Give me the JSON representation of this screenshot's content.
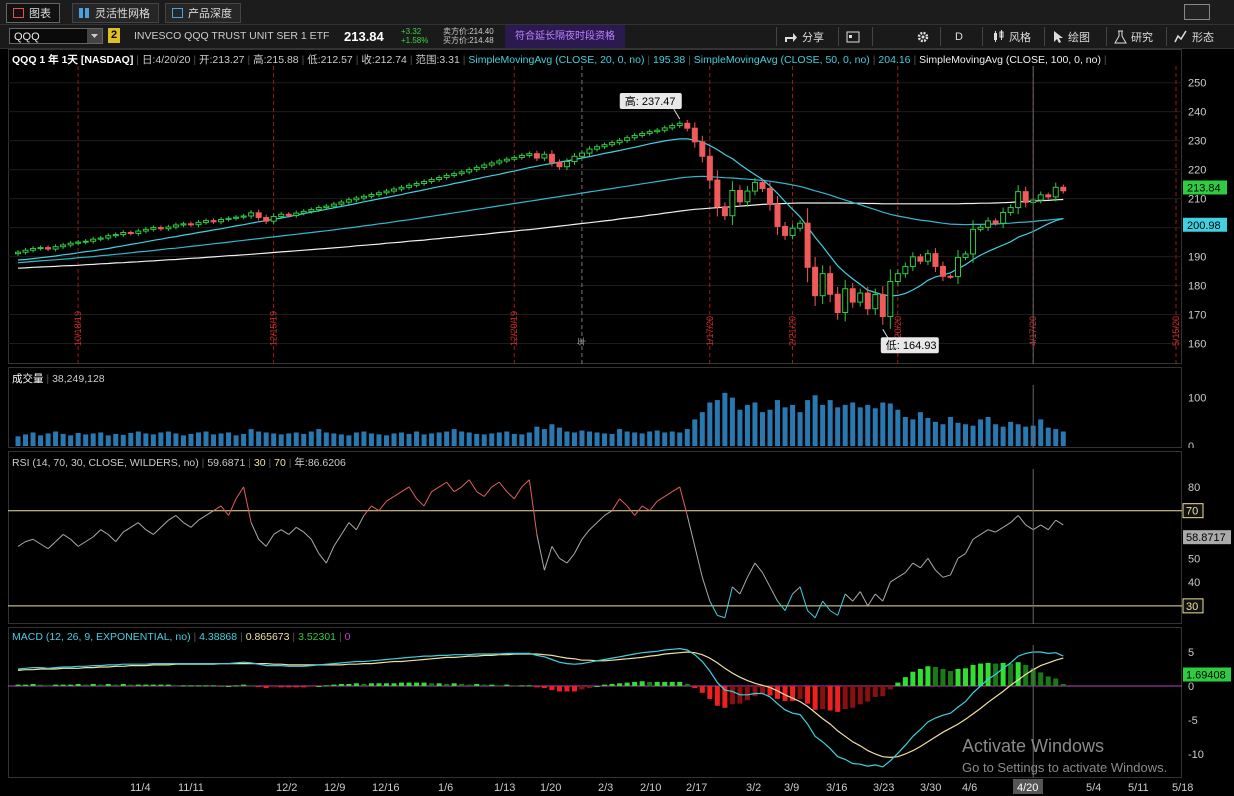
{
  "tabs": [
    {
      "label": "图表",
      "icon": "chart-icon",
      "active": true
    },
    {
      "label": "灵活性网格",
      "icon": "grid-icon",
      "active": false
    },
    {
      "label": "产品深度",
      "icon": "depth-icon",
      "active": false
    }
  ],
  "toolbar": {
    "symbol": "QQQ",
    "link_number": "2",
    "security_name": "INVESCO QQQ TRUST UNIT SER 1 ETF",
    "last_price": "213.84",
    "change": "+3.32",
    "change_pct": "+1.58%",
    "bid": "卖方价:214.40",
    "ask": "买方价:214.48",
    "extended_hours": "符合延长隔夜时段资格",
    "buttons": [
      {
        "label": "分享",
        "icon": "share-icon"
      },
      {
        "label": "",
        "icon": "calendar-icon"
      },
      {
        "label": "",
        "icon": "settings-gear-icon"
      },
      {
        "label": "D",
        "icon": "timeframe-icon"
      },
      {
        "label": "风格",
        "icon": "style-icon"
      },
      {
        "label": "绘图",
        "icon": "draw-cursor-icon"
      },
      {
        "label": "研究",
        "icon": "flask-icon"
      },
      {
        "label": "形态",
        "icon": "pattern-icon"
      }
    ]
  },
  "header": {
    "title": "QQQ 1 年 1天 [NASDAQ]",
    "date": "日:4/20/20",
    "open": "开:213.27",
    "high": "高:215.88",
    "low": "低:212.57",
    "close": "收:212.74",
    "range": "范围:3.31",
    "sma20_label": "SimpleMovingAvg (CLOSE, 20, 0, no)",
    "sma20_val": "195.38",
    "sma50_label": "SimpleMovingAvg (CLOSE, 50, 0, no)",
    "sma50_val": "204.16",
    "sma100_label": "SimpleMovingAvg (CLOSE, 100, 0, no)"
  },
  "price_panel": {
    "high_marker": "高: 237.47",
    "low_marker": "低: 164.93",
    "last_tag": "213.84",
    "sma_tag": "200.98",
    "y_ticks": [
      "250",
      "240",
      "230",
      "220",
      "210",
      "200",
      "190",
      "180",
      "170",
      "160"
    ],
    "event_labels": [
      "10/18/19",
      "12/15/19",
      "12/20/19",
      "年",
      "1/17/20",
      "2/21/20",
      "3/20/20",
      "4/17/20",
      "5/15/20"
    ]
  },
  "volume_panel": {
    "label": "成交量",
    "value": "38,249,128",
    "y_ticks": [
      "100",
      "0"
    ]
  },
  "rsi_panel": {
    "label": "RSI (14, 70, 30, CLOSE, WILDERS, no)",
    "value": "59.6871",
    "ob": "30",
    "os": "70",
    "extra": "年:86.6206",
    "y_ticks": [
      "80",
      "70",
      "60",
      "50",
      "40",
      "30"
    ],
    "last_tag": "58.8717"
  },
  "macd_panel": {
    "label": "MACD (12, 26, 9, EXPONENTIAL, no)",
    "value": "4.38868",
    "avg": "0.865673",
    "diff": "3.52301",
    "zero": "0",
    "y_ticks": [
      "5",
      "0",
      "-5",
      "-10"
    ],
    "last_tag": "1.69408"
  },
  "x_axis": {
    "labels": [
      "11/4",
      "11/11",
      "12/2",
      "12/9",
      "12/16",
      "1/6",
      "1/13",
      "1/20",
      "2/3",
      "2/10",
      "2/17",
      "3/2",
      "3/9",
      "3/16",
      "3/23",
      "3/30",
      "4/6",
      "4/20",
      "5/4",
      "5/11",
      "5/18"
    ]
  },
  "watermark": {
    "line1": "Activate Windows",
    "line2": "Go to Settings to activate Windows."
  },
  "colors": {
    "up": "#2ecc40",
    "down": "#f05a5a",
    "sma20": "#40d0e0",
    "sma50": "#30b8d0",
    "sma100": "#f0f0f0",
    "volume": "#2a78b0",
    "rsi_ob": "#e06060",
    "macd": "#40d0e0",
    "signal": "#f0e0a0",
    "zero": "#c040c0"
  },
  "chart_data": {
    "type": "candlestick",
    "symbol": "QQQ",
    "period": "1 年 1天",
    "ylim": [
      155,
      253
    ],
    "highlights": {
      "high": 237.47,
      "low": 164.93,
      "last": 213.84,
      "sma": 200.98
    },
    "closes": [
      191.5,
      192.2,
      192.8,
      193.1,
      192.6,
      193.4,
      194.0,
      194.6,
      195.0,
      195.3,
      196.0,
      196.4,
      197.2,
      197.6,
      198.3,
      198.0,
      198.8,
      199.4,
      200.0,
      199.6,
      200.2,
      200.9,
      201.3,
      201.0,
      201.8,
      202.4,
      202.0,
      202.8,
      203.2,
      203.6,
      204.0,
      205.1,
      203.5,
      202.2,
      203.8,
      204.6,
      204.2,
      205.0,
      205.6,
      206.2,
      206.9,
      207.4,
      208.1,
      208.8,
      209.6,
      210.2,
      210.8,
      211.4,
      212.0,
      212.6,
      213.3,
      213.9,
      214.6,
      215.2,
      215.9,
      216.6,
      217.3,
      218.0,
      218.6,
      219.2,
      220.0,
      220.8,
      221.6,
      222.3,
      223.0,
      223.6,
      224.2,
      224.9,
      225.5,
      224.0,
      225.3,
      222.5,
      221.0,
      222.8,
      224.6,
      225.7,
      227.1,
      227.9,
      228.6,
      229.3,
      230.1,
      231.0,
      231.8,
      232.5,
      233.1,
      233.6,
      234.4,
      235.2,
      236.0,
      234.3,
      229.6,
      224.6,
      216.4,
      207.2,
      204.1,
      212.8,
      208.9,
      212.6,
      215.6,
      213.5,
      208.0,
      200.4,
      197.3,
      199.8,
      201.5,
      186.3,
      176.5,
      184.1,
      177.0,
      170.7,
      178.9,
      174.3,
      177.4,
      172.0,
      176.9,
      169.3,
      181.4,
      184.1,
      186.6,
      189.9,
      188.4,
      191.0,
      186.6,
      183.2,
      183.1,
      189.7,
      190.9,
      199.4,
      200.1,
      202.3,
      201.5,
      205.2,
      206.9,
      212.4,
      208.7,
      209.5,
      211.3,
      210.6,
      213.9,
      212.7
    ],
    "sma20": [
      188.8,
      189.0,
      189.3,
      189.6,
      189.9,
      190.2,
      190.6,
      190.9,
      191.3,
      191.7,
      192.0,
      192.4,
      192.8,
      193.3,
      193.7,
      194.2,
      194.6,
      195.1,
      195.6,
      196.0,
      196.5,
      196.9,
      197.4,
      197.8,
      198.3,
      198.7,
      199.2,
      199.6,
      200.1,
      200.6,
      201.0,
      201.5,
      202.0,
      202.4,
      202.9,
      203.3,
      203.8,
      204.3,
      204.8,
      205.3,
      205.8,
      206.3,
      206.8,
      207.3,
      207.8,
      208.3,
      208.9,
      209.4,
      209.9,
      210.4,
      210.9,
      211.4,
      212.0,
      212.5,
      213.0,
      213.6,
      214.1,
      214.6,
      215.2,
      215.7,
      216.3,
      216.8,
      217.4,
      217.9,
      218.4,
      219.0,
      219.5,
      220.1,
      220.7,
      221.2,
      221.7,
      222.1,
      222.6,
      223.0,
      223.5,
      224.0,
      224.5,
      225.0,
      225.6,
      226.1,
      226.6,
      227.2,
      227.7,
      228.3,
      228.9,
      229.4,
      229.9,
      230.3,
      230.6,
      230.6,
      230.2,
      229.5,
      228.3,
      226.9,
      225.2,
      223.8,
      221.8,
      220.0,
      218.3,
      216.6,
      214.4,
      211.8,
      209.0,
      206.3,
      203.7,
      200.2,
      196.7,
      193.5,
      190.1,
      186.8,
      184.4,
      182.3,
      180.4,
      178.4,
      177.6,
      176.8,
      176.4,
      176.6,
      177.3,
      178.5,
      180.0,
      181.8,
      183.0,
      183.6,
      184.4,
      185.8,
      187.2,
      189.0,
      190.5,
      191.8,
      192.9,
      194.0,
      195.1,
      196.7,
      197.6,
      198.7,
      200.0,
      201.3,
      202.4,
      203.1
    ],
    "sma50": [
      187.9,
      188.1,
      188.3,
      188.5,
      188.7,
      188.9,
      189.1,
      189.3,
      189.6,
      189.8,
      190.0,
      190.3,
      190.5,
      190.8,
      191.0,
      191.3,
      191.6,
      191.8,
      192.1,
      192.4,
      192.7,
      192.9,
      193.2,
      193.5,
      193.8,
      194.1,
      194.4,
      194.7,
      195.0,
      195.3,
      195.6,
      195.9,
      196.2,
      196.5,
      196.8,
      197.1,
      197.4,
      197.7,
      198.0,
      198.3,
      198.6,
      198.9,
      199.2,
      199.6,
      199.9,
      200.2,
      200.6,
      200.9,
      201.3,
      201.6,
      202.0,
      202.4,
      202.7,
      203.1,
      203.5,
      203.9,
      204.3,
      204.7,
      205.1,
      205.5,
      205.9,
      206.3,
      206.7,
      207.1,
      207.5,
      207.9,
      208.3,
      208.7,
      209.1,
      209.5,
      209.9,
      210.3,
      210.7,
      211.1,
      211.5,
      211.9,
      212.3,
      212.7,
      213.1,
      213.5,
      213.9,
      214.3,
      214.7,
      215.1,
      215.5,
      215.9,
      216.3,
      216.7,
      217.1,
      217.4,
      217.6,
      217.7,
      217.6,
      217.4,
      217.2,
      217.1,
      216.9,
      216.7,
      216.5,
      216.3,
      216.0,
      215.6,
      215.2,
      214.7,
      214.2,
      213.5,
      212.7,
      212.0,
      211.2,
      210.3,
      209.5,
      208.7,
      207.9,
      207.0,
      206.2,
      205.3,
      204.6,
      204.0,
      203.5,
      203.0,
      202.6,
      202.3,
      201.9,
      201.5,
      201.2,
      201.1,
      201.0,
      201.1,
      201.1,
      201.2,
      201.2,
      201.4,
      201.5,
      201.8,
      201.9,
      202.1,
      202.4,
      202.6,
      202.9,
      203.1
    ],
    "sma100": [
      186.0,
      186.1,
      186.3,
      186.4,
      186.5,
      186.6,
      186.8,
      186.9,
      187.0,
      187.2,
      187.3,
      187.5,
      187.6,
      187.8,
      187.9,
      188.1,
      188.2,
      188.4,
      188.5,
      188.7,
      188.9,
      189.0,
      189.2,
      189.4,
      189.5,
      189.7,
      189.9,
      190.1,
      190.3,
      190.4,
      190.6,
      190.8,
      191.0,
      191.2,
      191.4,
      191.6,
      191.8,
      192.0,
      192.2,
      192.4,
      192.6,
      192.8,
      193.0,
      193.2,
      193.4,
      193.7,
      193.9,
      194.1,
      194.3,
      194.6,
      194.8,
      195.0,
      195.3,
      195.5,
      195.7,
      196.0,
      196.2,
      196.5,
      196.7,
      197.0,
      197.2,
      197.5,
      197.7,
      198.0,
      198.3,
      198.5,
      198.8,
      199.1,
      199.3,
      199.6,
      199.9,
      200.2,
      200.5,
      200.8,
      201.1,
      201.4,
      201.7,
      202.0,
      202.3,
      202.6,
      203.0,
      203.3,
      203.6,
      203.9,
      204.3,
      204.6,
      205.0,
      205.3,
      205.7,
      206.0,
      206.3,
      206.5,
      206.7,
      206.9,
      207.0,
      207.2,
      207.4,
      207.6,
      207.8,
      208.0,
      208.1,
      208.2,
      208.3,
      208.4,
      208.5,
      208.5,
      208.5,
      208.5,
      208.5,
      208.5,
      208.5,
      208.4,
      208.4,
      208.3,
      208.3,
      208.2,
      208.2,
      208.2,
      208.2,
      208.2,
      208.2,
      208.2,
      208.2,
      208.2,
      208.2,
      208.2,
      208.3,
      208.3,
      208.4,
      208.4,
      208.5,
      208.6,
      208.7,
      208.9,
      209.0,
      209.1,
      209.3,
      209.4,
      209.6,
      209.7
    ],
    "volume": [
      20,
      24,
      28,
      22,
      26,
      30,
      25,
      22,
      27,
      24,
      26,
      28,
      22,
      25,
      23,
      27,
      30,
      26,
      24,
      28,
      30,
      26,
      22,
      25,
      28,
      30,
      24,
      26,
      28,
      22,
      25,
      35,
      30,
      28,
      26,
      24,
      26,
      28,
      25,
      30,
      35,
      28,
      26,
      24,
      22,
      28,
      30,
      26,
      24,
      22,
      26,
      28,
      25,
      30,
      24,
      26,
      28,
      30,
      35,
      30,
      28,
      25,
      24,
      26,
      28,
      30,
      25,
      24,
      28,
      40,
      35,
      45,
      38,
      30,
      28,
      32,
      30,
      28,
      26,
      25,
      35,
      30,
      28,
      26,
      30,
      32,
      28,
      30,
      28,
      35,
      55,
      70,
      90,
      95,
      110,
      100,
      75,
      85,
      90,
      70,
      75,
      95,
      80,
      85,
      70,
      95,
      105,
      85,
      95,
      80,
      85,
      90,
      80,
      85,
      78,
      90,
      88,
      75,
      60,
      55,
      70,
      58,
      50,
      45,
      60,
      48,
      45,
      42,
      55,
      60,
      45,
      40,
      50,
      45,
      40,
      42,
      55,
      38,
      35,
      30
    ],
    "rsi": [
      55,
      57,
      58,
      56,
      54,
      57,
      60,
      58,
      55,
      57,
      59,
      62,
      60,
      57,
      61,
      63,
      65,
      62,
      60,
      63,
      66,
      68,
      65,
      63,
      66,
      68,
      70,
      72,
      68,
      75,
      80,
      65,
      58,
      55,
      60,
      62,
      60,
      63,
      61,
      58,
      52,
      48,
      55,
      60,
      65,
      62,
      68,
      72,
      70,
      74,
      76,
      78,
      80,
      75,
      72,
      78,
      80,
      82,
      78,
      80,
      83,
      78,
      76,
      80,
      82,
      78,
      75,
      80,
      83,
      60,
      45,
      55,
      50,
      48,
      52,
      58,
      62,
      65,
      68,
      70,
      75,
      72,
      68,
      72,
      70,
      74,
      76,
      78,
      80,
      68,
      55,
      42,
      32,
      26,
      25,
      38,
      35,
      42,
      48,
      44,
      38,
      32,
      28,
      35,
      38,
      28,
      25,
      32,
      28,
      26,
      35,
      32,
      36,
      30,
      35,
      32,
      40,
      42,
      44,
      48,
      46,
      50,
      45,
      42,
      43,
      50,
      52,
      58,
      60,
      62,
      61,
      63,
      65,
      68,
      64,
      62,
      64,
      62,
      66,
      64
    ],
    "macd": [
      2.5,
      2.6,
      2.7,
      2.7,
      2.6,
      2.7,
      2.8,
      2.8,
      2.9,
      2.9,
      3.0,
      3.0,
      3.1,
      3.1,
      3.2,
      3.2,
      3.2,
      3.2,
      3.3,
      3.3,
      3.3,
      3.3,
      3.3,
      3.3,
      3.3,
      3.3,
      3.3,
      3.3,
      3.3,
      3.4,
      3.5,
      3.4,
      3.2,
      3.0,
      3.0,
      3.0,
      2.9,
      2.9,
      2.9,
      3.0,
      3.1,
      3.2,
      3.3,
      3.4,
      3.5,
      3.6,
      3.6,
      3.7,
      3.8,
      3.9,
      4.0,
      4.1,
      4.2,
      4.3,
      4.4,
      4.4,
      4.5,
      4.5,
      4.6,
      4.6,
      4.6,
      4.7,
      4.7,
      4.7,
      4.7,
      4.8,
      4.8,
      4.8,
      4.8,
      4.5,
      4.3,
      3.9,
      3.5,
      3.3,
      3.2,
      3.3,
      3.5,
      3.7,
      3.9,
      4.1,
      4.3,
      4.5,
      4.7,
      4.9,
      5.0,
      5.1,
      5.3,
      5.4,
      5.5,
      5.3,
      4.6,
      3.6,
      2.2,
      0.5,
      -0.6,
      -0.8,
      -1.3,
      -1.3,
      -1.1,
      -1.1,
      -1.6,
      -2.6,
      -3.5,
      -4.0,
      -4.2,
      -5.6,
      -7.4,
      -8.2,
      -9.2,
      -10.4,
      -10.8,
      -11.4,
      -11.5,
      -11.8,
      -11.6,
      -11.9,
      -11.0,
      -9.9,
      -8.7,
      -7.4,
      -6.4,
      -5.3,
      -4.7,
      -4.3,
      -4.0,
      -3.1,
      -2.3,
      -1.0,
      0.0,
      1.0,
      1.7,
      2.6,
      3.4,
      4.4,
      4.8,
      5.0,
      5.0,
      4.8,
      4.9,
      4.4
    ],
    "macd_signal": [
      2.3,
      2.4,
      2.4,
      2.5,
      2.5,
      2.5,
      2.6,
      2.6,
      2.6,
      2.7,
      2.7,
      2.8,
      2.8,
      2.9,
      2.9,
      3.0,
      3.0,
      3.0,
      3.1,
      3.1,
      3.1,
      3.2,
      3.2,
      3.2,
      3.2,
      3.2,
      3.2,
      3.3,
      3.3,
      3.3,
      3.3,
      3.3,
      3.3,
      3.3,
      3.2,
      3.2,
      3.1,
      3.1,
      3.1,
      3.1,
      3.1,
      3.1,
      3.1,
      3.1,
      3.2,
      3.2,
      3.3,
      3.3,
      3.4,
      3.5,
      3.6,
      3.6,
      3.7,
      3.8,
      3.9,
      4.0,
      4.1,
      4.2,
      4.2,
      4.3,
      4.4,
      4.4,
      4.5,
      4.5,
      4.6,
      4.6,
      4.7,
      4.7,
      4.7,
      4.7,
      4.6,
      4.5,
      4.3,
      4.1,
      4.0,
      3.8,
      3.8,
      3.7,
      3.7,
      3.8,
      3.9,
      4.0,
      4.1,
      4.2,
      4.4,
      4.5,
      4.7,
      4.8,
      4.9,
      5.0,
      4.9,
      4.6,
      4.1,
      3.4,
      2.6,
      1.9,
      1.3,
      0.8,
      0.4,
      0.1,
      -0.2,
      -0.7,
      -1.3,
      -1.8,
      -2.3,
      -3.0,
      -3.9,
      -4.8,
      -5.6,
      -6.6,
      -7.4,
      -8.2,
      -8.8,
      -9.5,
      -10.0,
      -10.4,
      -10.5,
      -10.4,
      -10.0,
      -9.5,
      -8.9,
      -8.2,
      -7.5,
      -6.8,
      -6.2,
      -5.6,
      -4.9,
      -4.1,
      -3.3,
      -2.4,
      -1.6,
      -0.8,
      0.1,
      0.9,
      1.7,
      2.4,
      3.0,
      3.4,
      3.8,
      4.1
    ],
    "macd_hist": [
      0.2,
      0.2,
      0.3,
      0.2,
      0.1,
      0.2,
      0.2,
      0.2,
      0.3,
      0.2,
      0.3,
      0.2,
      0.3,
      0.2,
      0.3,
      0.2,
      0.2,
      0.2,
      0.2,
      0.2,
      0.2,
      0.1,
      0.1,
      0.1,
      0.1,
      0.1,
      0.1,
      0.0,
      0.0,
      0.1,
      0.2,
      0.1,
      -0.1,
      -0.3,
      -0.2,
      -0.2,
      -0.2,
      -0.2,
      -0.2,
      -0.1,
      0.0,
      0.1,
      0.2,
      0.3,
      0.3,
      0.4,
      0.3,
      0.4,
      0.4,
      0.4,
      0.4,
      0.5,
      0.5,
      0.5,
      0.5,
      0.4,
      0.4,
      0.3,
      0.4,
      0.3,
      0.2,
      0.3,
      0.2,
      0.2,
      0.1,
      0.2,
      0.1,
      0.1,
      0.1,
      -0.2,
      -0.3,
      -0.6,
      -0.8,
      -0.8,
      -0.8,
      -0.5,
      -0.3,
      0.0,
      0.2,
      0.3,
      0.4,
      0.5,
      0.6,
      0.7,
      0.6,
      0.6,
      0.6,
      0.6,
      0.6,
      0.3,
      -0.3,
      -1.0,
      -1.9,
      -2.9,
      -3.2,
      -2.7,
      -2.6,
      -2.1,
      -1.5,
      -1.2,
      -1.4,
      -1.9,
      -2.2,
      -2.2,
      -1.9,
      -2.6,
      -3.5,
      -3.4,
      -3.6,
      -3.8,
      -3.4,
      -3.2,
      -2.7,
      -2.3,
      -1.6,
      -1.5,
      -0.5,
      0.5,
      1.3,
      2.1,
      2.5,
      2.9,
      2.8,
      2.5,
      2.2,
      2.5,
      2.6,
      3.1,
      3.3,
      3.4,
      3.3,
      3.4,
      3.3,
      3.5,
      3.1,
      2.6,
      2.0,
      1.4,
      1.1,
      0.3
    ]
  }
}
